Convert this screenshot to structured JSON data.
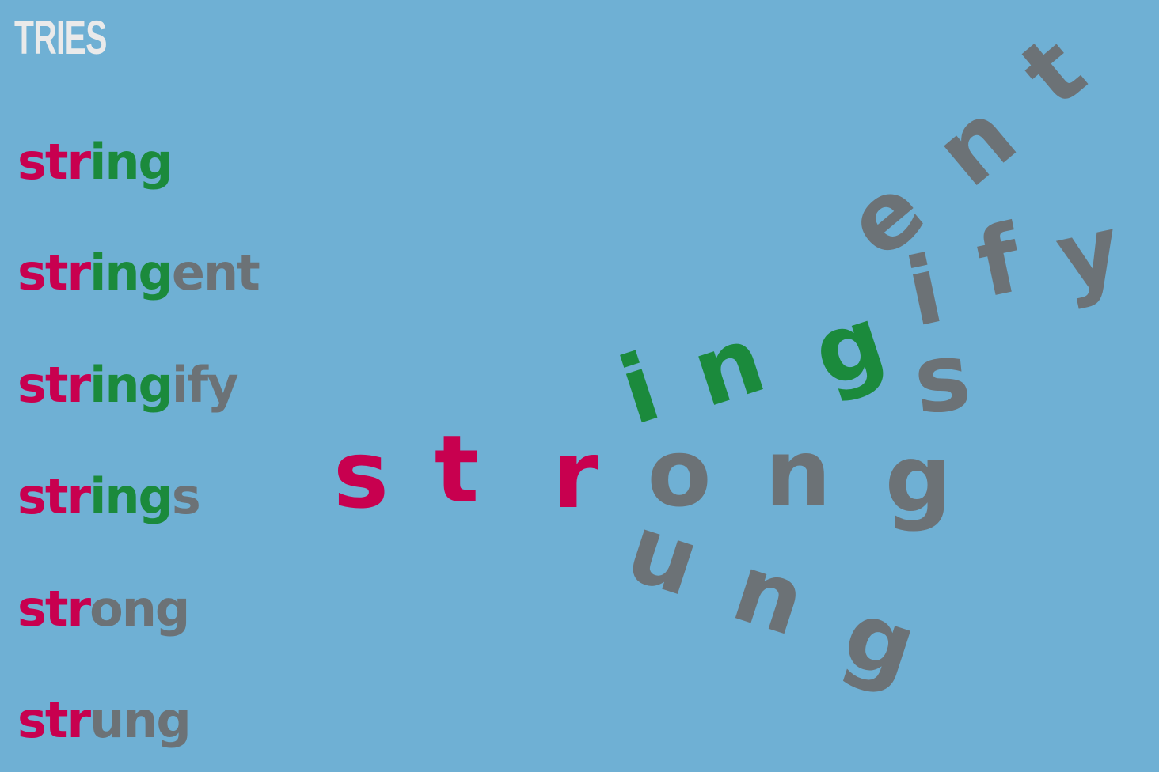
{
  "title": "TRIES",
  "words": [
    {
      "prefix": "str",
      "mid": "ing",
      "suffix": ""
    },
    {
      "prefix": "str",
      "mid": "ing",
      "suffix": "ent"
    },
    {
      "prefix": "str",
      "mid": "ing",
      "suffix": "ify"
    },
    {
      "prefix": "str",
      "mid": "ing",
      "suffix": "s"
    },
    {
      "prefix": "str",
      "mid": "",
      "suffix": "ong"
    },
    {
      "prefix": "str",
      "mid": "",
      "suffix": "ung"
    }
  ],
  "trie_letters": {
    "prefix": [
      "s",
      "t",
      "r"
    ],
    "ing": [
      "i",
      "n",
      "g"
    ],
    "ent": [
      "e",
      "n",
      "t"
    ],
    "ify": [
      "i",
      "f",
      "y"
    ],
    "s": [
      "s"
    ],
    "ong": [
      "o",
      "n",
      "g"
    ],
    "ung": [
      "u",
      "n",
      "g"
    ]
  },
  "colors": {
    "background": "#6fb0d4",
    "prefix": "#c8004f",
    "shared": "#1b8a3c",
    "suffix": "#6c7276",
    "title": "#eaeaea"
  }
}
